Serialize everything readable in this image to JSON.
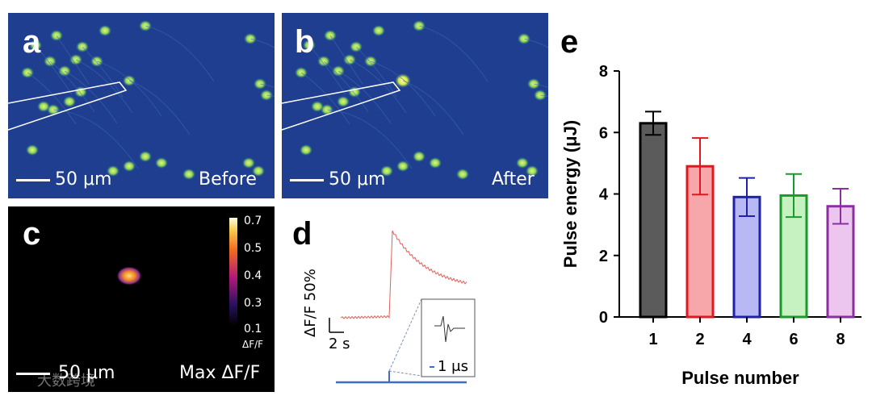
{
  "panel_a": {
    "letter": "a",
    "scale_label": "50 μm",
    "state_label": "Before"
  },
  "panel_b": {
    "letter": "b",
    "scale_label": "50 μm",
    "state_label": "After"
  },
  "panel_c": {
    "letter": "c",
    "scale_label": "50 μm",
    "title": "Max ΔF/F",
    "colorbar": {
      "ticks": [
        "0.7",
        "0.5",
        "0.4",
        "0.3",
        "0.1"
      ],
      "label": "ΔF/F"
    }
  },
  "panel_d": {
    "letter": "d",
    "y_scale_label": "ΔF/F 50%",
    "x_scale_label": "2 s",
    "inset_scale_label": "1 μs"
  },
  "panel_e": {
    "letter": "e"
  },
  "watermark": "大数跨境",
  "colors": {
    "background_blue": "#1f3e8f",
    "cell_green": "#8fd45a",
    "trace_red": "#e0605a",
    "stim_blue": "#3b6fc4"
  },
  "chart_data": {
    "type": "bar",
    "title": "",
    "xlabel": "Pulse number",
    "ylabel": "Pulse energy (μJ)",
    "ylim": [
      0,
      8
    ],
    "yticks": [
      "0",
      "2",
      "4",
      "6",
      "8"
    ],
    "categories": [
      "1",
      "2",
      "4",
      "6",
      "8"
    ],
    "values": [
      6.3,
      4.9,
      3.9,
      3.95,
      3.6
    ],
    "errors": [
      0.38,
      0.92,
      0.62,
      0.7,
      0.57
    ],
    "bar_fill": [
      "#5b5b5b",
      "#f7a7a9",
      "#b8b8f4",
      "#c6f2c2",
      "#ecc6ef"
    ],
    "bar_edge": [
      "#000000",
      "#e3161e",
      "#1f22a8",
      "#1a9a2a",
      "#8a2fa0"
    ],
    "grid": false
  }
}
